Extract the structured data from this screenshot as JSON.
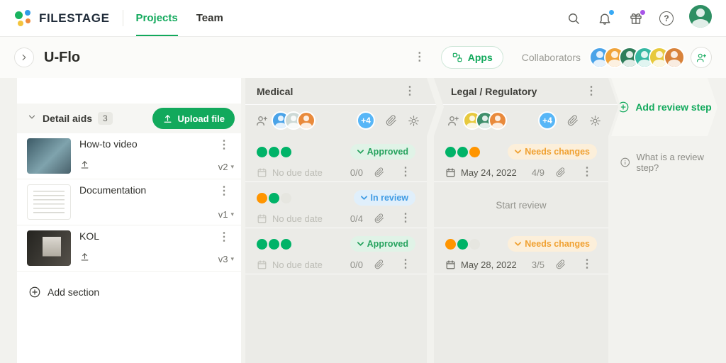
{
  "icons": {
    "kebab": "⋮",
    "chevron": "▾"
  },
  "colors": {
    "accent_green": "#12a95c",
    "approved": "#27a35f",
    "in_review": "#3f9be4",
    "needs_changes": "#f0a132",
    "dot_green": "#00b368",
    "dot_orange": "#ff9500",
    "overflow_blue": "#57b6f7",
    "notification_blue": "#38a9f5",
    "notification_purple": "#a855e8"
  },
  "header": {
    "brand": "FILESTAGE",
    "nav": [
      {
        "label": "Projects"
      },
      {
        "label": "Team"
      }
    ],
    "user_avatar": [
      "#2e8f63"
    ]
  },
  "project": {
    "title": "U-Flo",
    "apps_label": "Apps",
    "collaborators_label": "Collaborators",
    "collaborators": [
      "#4aa3e8",
      "#f0a43b",
      "#2f7d5a",
      "#35b8a2",
      "#e7c93d",
      "#d8823a"
    ]
  },
  "files_panel": {
    "section_name": "Detail aids",
    "section_count": "3",
    "upload_label": "Upload file",
    "add_section_label": "Add section",
    "files": [
      {
        "name": "How-to video",
        "version": "v2"
      },
      {
        "name": "Documentation",
        "version": "v1"
      },
      {
        "name": "KOL",
        "version": "v3"
      }
    ]
  },
  "steps": [
    {
      "name": "Medical",
      "avatars": [
        "#4aa3e8",
        "#cdd9d6",
        "#e98a3c"
      ],
      "overflow": "+4",
      "cards": [
        {
          "dots": [
            "green",
            "green",
            "green"
          ],
          "status": "Approved",
          "status_class": "approved",
          "due": "No due date",
          "due_class": "muted",
          "progress": "0/0"
        },
        {
          "dots": [
            "orange",
            "green",
            "empty"
          ],
          "status": "In review",
          "status_class": "in-review",
          "due": "No due date",
          "due_class": "muted",
          "progress": "0/4"
        },
        {
          "dots": [
            "green",
            "green",
            "green"
          ],
          "status": "Approved",
          "status_class": "approved",
          "due": "No due date",
          "due_class": "muted",
          "progress": "0/0"
        }
      ]
    },
    {
      "name": "Legal / Regulatory",
      "avatars": [
        "#e7c93d",
        "#3f8f6b",
        "#e98a3c"
      ],
      "overflow": "+4",
      "cards": [
        {
          "dots": [
            "green",
            "green",
            "orange"
          ],
          "status": "Needs changes",
          "status_class": "needs-changes",
          "due": "May 24, 2022",
          "progress": "4/9"
        },
        {
          "start_label": "Start review"
        },
        {
          "dots": [
            "orange",
            "green",
            "empty"
          ],
          "status": "Needs changes",
          "status_class": "needs-changes",
          "due": "May 28, 2022",
          "progress": "3/5"
        }
      ]
    }
  ],
  "add_step": {
    "label": "Add review step",
    "help": "What is a review step?"
  }
}
